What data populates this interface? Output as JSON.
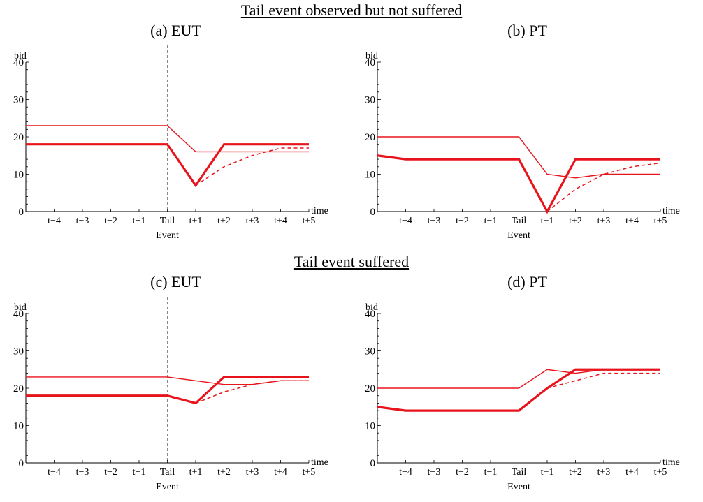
{
  "sections": [
    {
      "title": "Tail event observed but not suffered"
    },
    {
      "title": "Tail event suffered"
    }
  ],
  "chart_data": [
    {
      "type": "line",
      "title": "(a) EUT",
      "ylabel": "bid",
      "xlabel": "time",
      "ylim": [
        0,
        40
      ],
      "yticks": [
        0,
        10,
        20,
        30,
        40
      ],
      "categories": [
        "t−4",
        "t−3",
        "t−2",
        "t−1",
        "Tail",
        "t+1",
        "t+2",
        "t+3",
        "t+4",
        "t+5"
      ],
      "event_label": "Event",
      "event_marker": "Tail",
      "x": [
        -5,
        -4,
        -3,
        -2,
        -1,
        0,
        1,
        2,
        3,
        4,
        5
      ],
      "series": [
        {
          "style": "thick",
          "values": [
            18,
            18,
            18,
            18,
            18,
            18,
            7,
            18,
            18,
            18,
            18
          ]
        },
        {
          "style": "thin",
          "values": [
            23,
            23,
            23,
            23,
            23,
            23,
            16,
            16,
            16,
            16,
            16
          ]
        },
        {
          "style": "dashed",
          "values": [
            null,
            null,
            null,
            null,
            null,
            null,
            7,
            12,
            15,
            17,
            17
          ]
        }
      ]
    },
    {
      "type": "line",
      "title": "(b) PT",
      "ylabel": "bid",
      "xlabel": "time",
      "ylim": [
        0,
        40
      ],
      "yticks": [
        0,
        10,
        20,
        30,
        40
      ],
      "categories": [
        "t−4",
        "t−3",
        "t−2",
        "t−1",
        "Tail",
        "t+1",
        "t+2",
        "t+3",
        "t+4",
        "t+5"
      ],
      "event_label": "Event",
      "event_marker": "Tail",
      "x": [
        -5,
        -4,
        -3,
        -2,
        -1,
        0,
        1,
        2,
        3,
        4,
        5
      ],
      "series": [
        {
          "style": "thick",
          "values": [
            15,
            14,
            14,
            14,
            14,
            14,
            0,
            14,
            14,
            14,
            14
          ]
        },
        {
          "style": "thin",
          "values": [
            20,
            20,
            20,
            20,
            20,
            20,
            10,
            9,
            10,
            10,
            10
          ]
        },
        {
          "style": "dashed",
          "values": [
            null,
            null,
            null,
            null,
            null,
            null,
            0,
            6,
            10,
            12,
            13
          ]
        }
      ]
    },
    {
      "type": "line",
      "title": "(c) EUT",
      "ylabel": "bid",
      "xlabel": "time",
      "ylim": [
        0,
        40
      ],
      "yticks": [
        0,
        10,
        20,
        30,
        40
      ],
      "categories": [
        "t−4",
        "t−3",
        "t−2",
        "t−1",
        "Tail",
        "t+1",
        "t+2",
        "t+3",
        "t+4",
        "t+5"
      ],
      "event_label": "Event",
      "event_marker": "Tail",
      "x": [
        -5,
        -4,
        -3,
        -2,
        -1,
        0,
        1,
        2,
        3,
        4,
        5
      ],
      "series": [
        {
          "style": "thick",
          "values": [
            18,
            18,
            18,
            18,
            18,
            18,
            16,
            23,
            23,
            23,
            23
          ]
        },
        {
          "style": "thin",
          "values": [
            23,
            23,
            23,
            23,
            23,
            23,
            22,
            21,
            21,
            22,
            22
          ]
        },
        {
          "style": "dashed",
          "values": [
            null,
            null,
            null,
            null,
            null,
            null,
            16,
            19,
            21,
            22,
            22
          ]
        }
      ]
    },
    {
      "type": "line",
      "title": "(d) PT",
      "ylabel": "bid",
      "xlabel": "time",
      "ylim": [
        0,
        40
      ],
      "yticks": [
        0,
        10,
        20,
        30,
        40
      ],
      "categories": [
        "t−4",
        "t−3",
        "t−2",
        "t−1",
        "Tail",
        "t+1",
        "t+2",
        "t+3",
        "t+4",
        "t+5"
      ],
      "event_label": "Event",
      "event_marker": "Tail",
      "x": [
        -5,
        -4,
        -3,
        -2,
        -1,
        0,
        1,
        2,
        3,
        4,
        5
      ],
      "series": [
        {
          "style": "thick",
          "values": [
            15,
            14,
            14,
            14,
            14,
            14,
            20,
            25,
            25,
            25,
            25
          ]
        },
        {
          "style": "thin",
          "values": [
            20,
            20,
            20,
            20,
            20,
            20,
            25,
            24,
            25,
            25,
            25
          ]
        },
        {
          "style": "dashed",
          "values": [
            null,
            null,
            null,
            null,
            null,
            null,
            20,
            22,
            24,
            24,
            24
          ]
        }
      ]
    }
  ],
  "colors": {
    "line": "#e8141c",
    "axis": "#000000",
    "event_line": "#888888"
  }
}
